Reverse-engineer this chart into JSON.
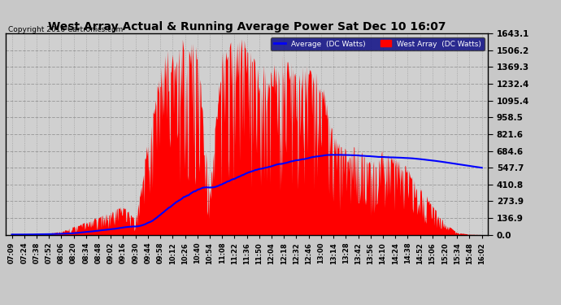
{
  "title": "West Array Actual & Running Average Power Sat Dec 10 16:07",
  "copyright": "Copyright 2016 Cartronics.com",
  "legend_avg": "Average  (DC Watts)",
  "legend_west": "West Array  (DC Watts)",
  "yticks": [
    0.0,
    136.9,
    273.9,
    410.8,
    547.7,
    684.6,
    821.6,
    958.5,
    1095.4,
    1232.4,
    1369.3,
    1506.2,
    1643.1
  ],
  "xtick_labels": [
    "07:09",
    "07:24",
    "07:38",
    "07:52",
    "08:06",
    "08:20",
    "08:34",
    "08:48",
    "09:02",
    "09:16",
    "09:30",
    "09:44",
    "09:58",
    "10:12",
    "10:26",
    "10:40",
    "10:54",
    "11:08",
    "11:22",
    "11:36",
    "11:50",
    "12:04",
    "12:18",
    "12:32",
    "12:46",
    "13:00",
    "13:14",
    "13:28",
    "13:42",
    "13:56",
    "14:10",
    "14:24",
    "14:38",
    "14:52",
    "15:06",
    "15:20",
    "15:34",
    "15:48",
    "16:02"
  ],
  "ymax": 1643.1,
  "bg_color": "#c8c8c8",
  "plot_bg_color": "#d0d0d0",
  "bar_color": "#ff0000",
  "avg_line_color": "#0000ff",
  "title_color": "#000000",
  "grid_color": "#999999",
  "west_power": [
    3,
    5,
    10,
    15,
    30,
    70,
    110,
    150,
    190,
    250,
    120,
    800,
    1400,
    1580,
    1600,
    1580,
    400,
    1550,
    1600,
    1620,
    1400,
    1380,
    1500,
    1350,
    1400,
    1300,
    820,
    700,
    750,
    600,
    700,
    650,
    550,
    400,
    250,
    100,
    20,
    5,
    2
  ]
}
